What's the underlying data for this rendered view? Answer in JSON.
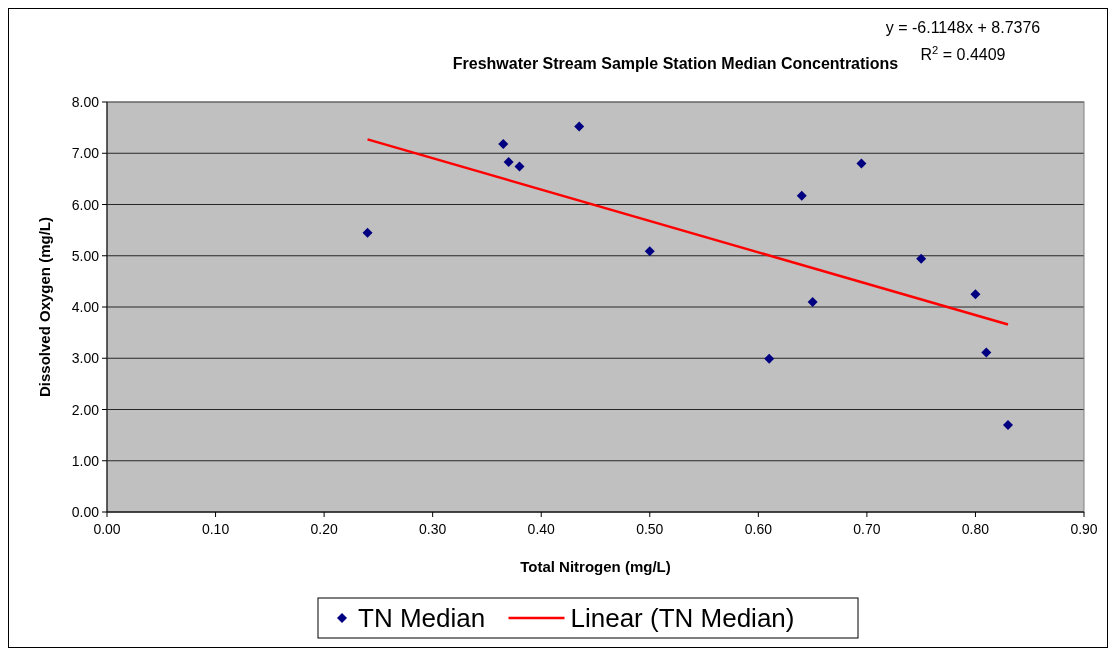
{
  "chart_data": {
    "type": "scatter",
    "title": "Freshwater Stream Sample Station Median Concentrations",
    "xlabel": "Total Nitrogen (mg/L)",
    "ylabel": "Dissolved Oxygen (mg/L)",
    "annotations": [
      "y = -6.1148x + 8.7376",
      "R$^{2}$ = 0.4409"
    ],
    "series": [
      {
        "name": "TN Median",
        "color": "#000080",
        "marker": "diamond",
        "x": [
          0.24,
          0.365,
          0.37,
          0.38,
          0.435,
          0.5,
          0.61,
          0.64,
          0.65,
          0.695,
          0.75,
          0.8,
          0.81,
          0.83
        ],
        "values": [
          5.45,
          7.18,
          6.83,
          6.74,
          7.52,
          5.09,
          2.99,
          6.17,
          4.1,
          6.8,
          4.94,
          4.25,
          3.11,
          1.7
        ]
      },
      {
        "name": "Linear (TN Median)",
        "type": "line",
        "color": "#ff0000",
        "marker": "none",
        "line_style": "solid",
        "x": [
          0.24,
          0.83
        ],
        "values": [
          7.27,
          3.66
        ]
      }
    ],
    "xlim": [
      0,
      0.9
    ],
    "ylim": [
      0,
      8
    ],
    "xticks": [
      {
        "value": 0,
        "label": "0.00"
      },
      {
        "value": 0.1,
        "label": "0.10"
      },
      {
        "value": 0.2,
        "label": "0.20"
      },
      {
        "value": 0.3,
        "label": "0.30"
      },
      {
        "value": 0.4,
        "label": "0.40"
      },
      {
        "value": 0.5,
        "label": "0.50"
      },
      {
        "value": 0.6,
        "label": "0.60"
      },
      {
        "value": 0.7,
        "label": "0.70"
      },
      {
        "value": 0.8,
        "label": "0.80"
      },
      {
        "value": 0.9,
        "label": "0.90"
      }
    ],
    "yticks": [
      {
        "value": 0,
        "label": "0.00"
      },
      {
        "value": 1,
        "label": "1.00"
      },
      {
        "value": 2,
        "label": "2.00"
      },
      {
        "value": 3,
        "label": "3.00"
      },
      {
        "value": 4,
        "label": "4.00"
      },
      {
        "value": 5,
        "label": "5.00"
      },
      {
        "value": 6,
        "label": "6.00"
      },
      {
        "value": 7,
        "label": "7.00"
      },
      {
        "value": 8,
        "label": "8.00"
      }
    ],
    "grid": "y",
    "legend": "bottom"
  }
}
